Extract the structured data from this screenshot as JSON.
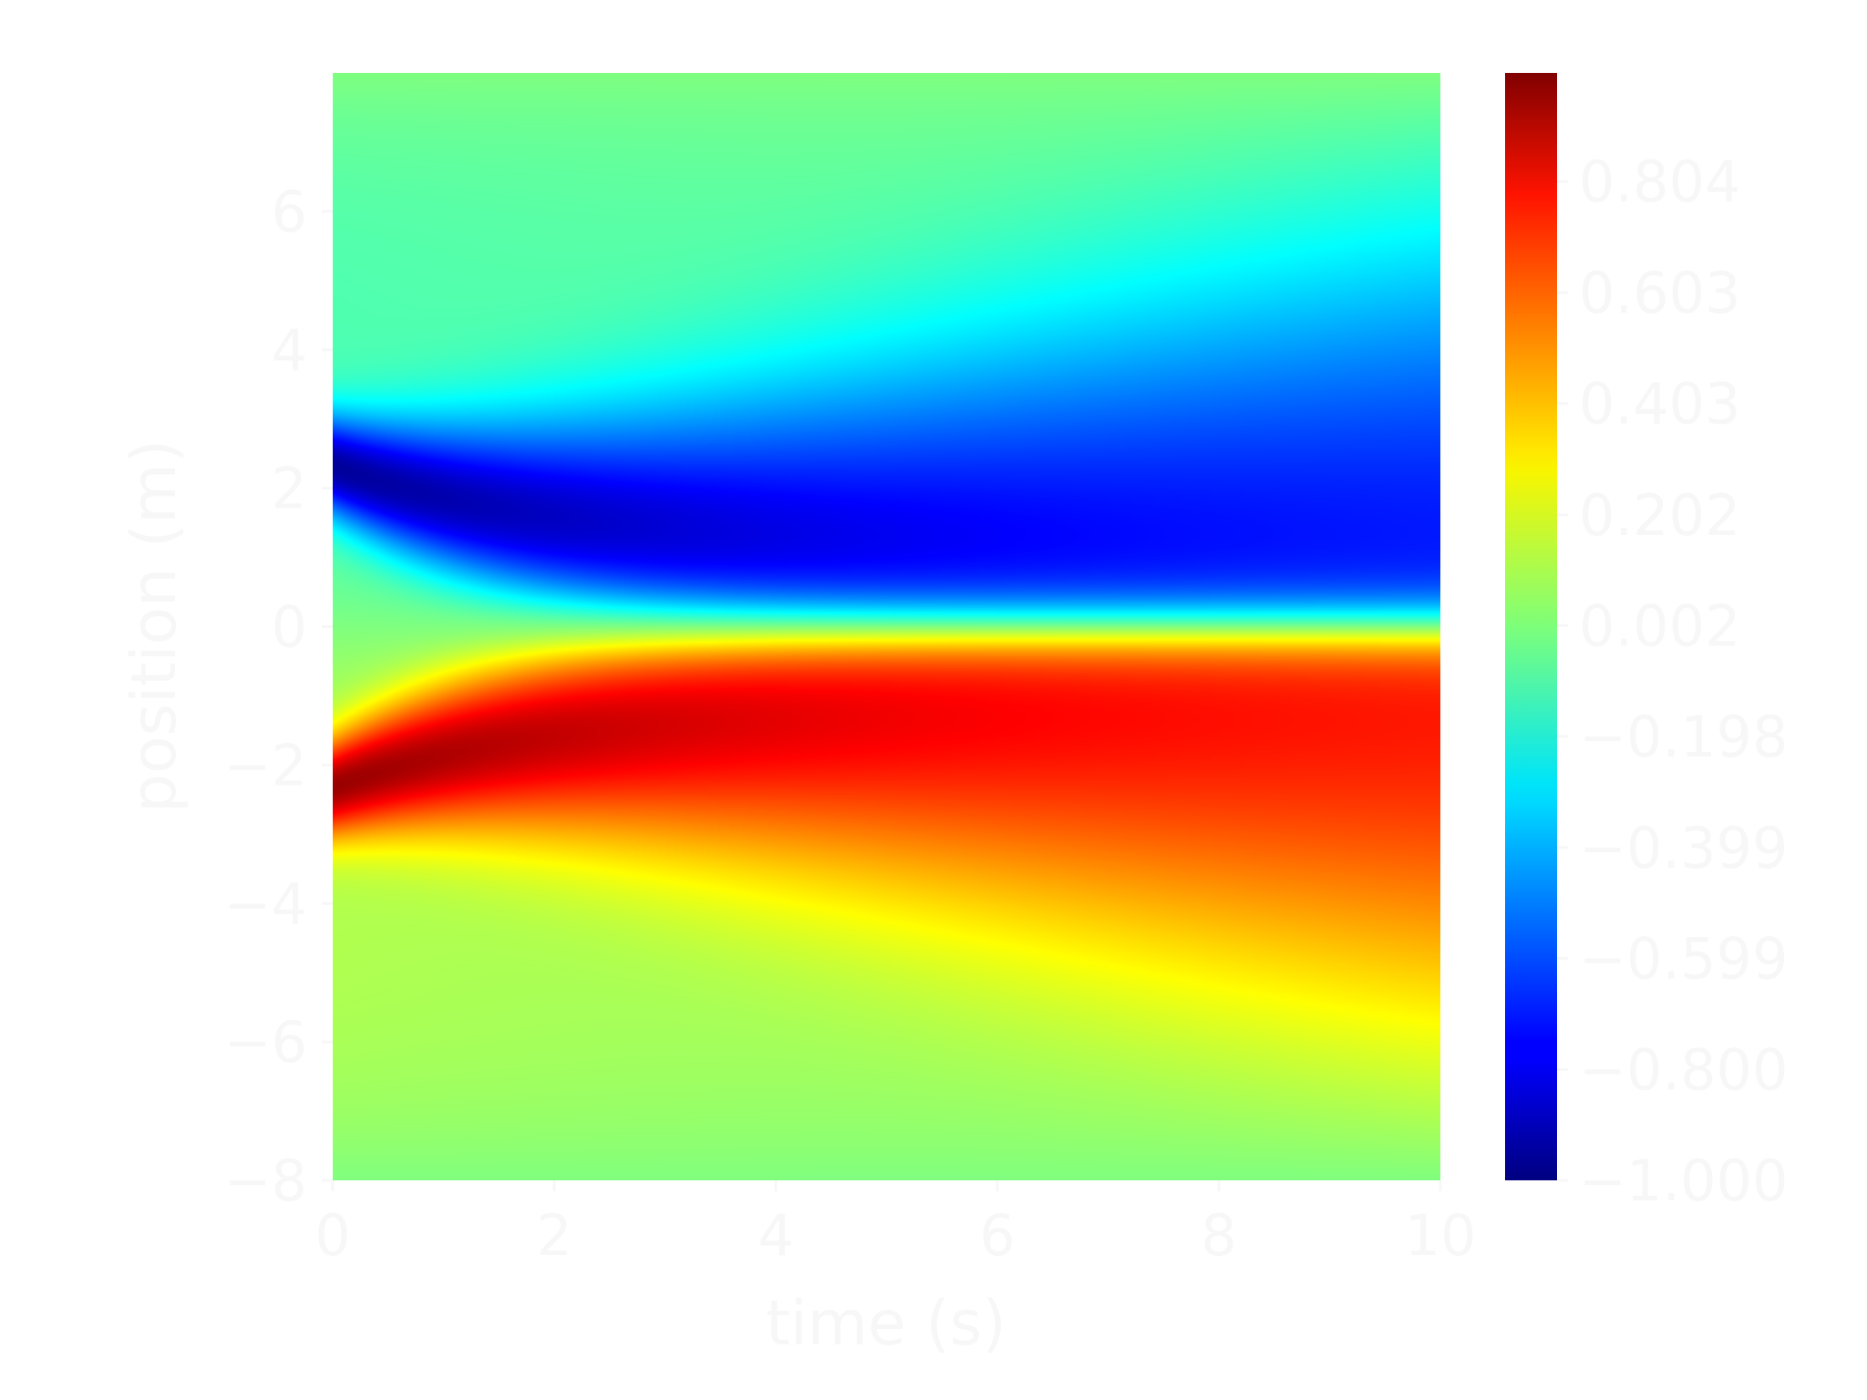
{
  "chart_data": {
    "type": "heatmap",
    "title": "",
    "xlabel": "time (s)",
    "ylabel": "position (m)",
    "xlim": [
      0,
      10
    ],
    "ylim": [
      -8,
      8
    ],
    "x_ticks": [
      "0",
      "2",
      "4",
      "6",
      "8",
      "10"
    ],
    "y_ticks": [
      "−8",
      "−6",
      "−4",
      "−2",
      "0",
      "2",
      "4",
      "6"
    ],
    "colormap": "jet",
    "colorbar": {
      "range": [
        -1.0,
        1.0
      ],
      "tick_values": [
        -1.0,
        -0.8,
        -0.599,
        -0.399,
        -0.198,
        0.002,
        0.202,
        0.403,
        0.603,
        0.804
      ],
      "tick_labels": [
        "−1.000",
        "−0.800",
        "−0.599",
        "−0.399",
        "−0.198",
        "0.002",
        "0.202",
        "0.403",
        "0.603",
        "0.804"
      ]
    },
    "field": "approximately antisymmetric in position; near 0 at |position| = 8; sharp sign change at position = 0 for time > 3; minimum near -1 at (time 0, position 2.3) drifting to (time 4, position 1); maximum near +1 at (time 0, position -2.3) drifting to (time 4, position -1); magnitude decays toward +/-0.7 by time 10",
    "grid": false
  }
}
